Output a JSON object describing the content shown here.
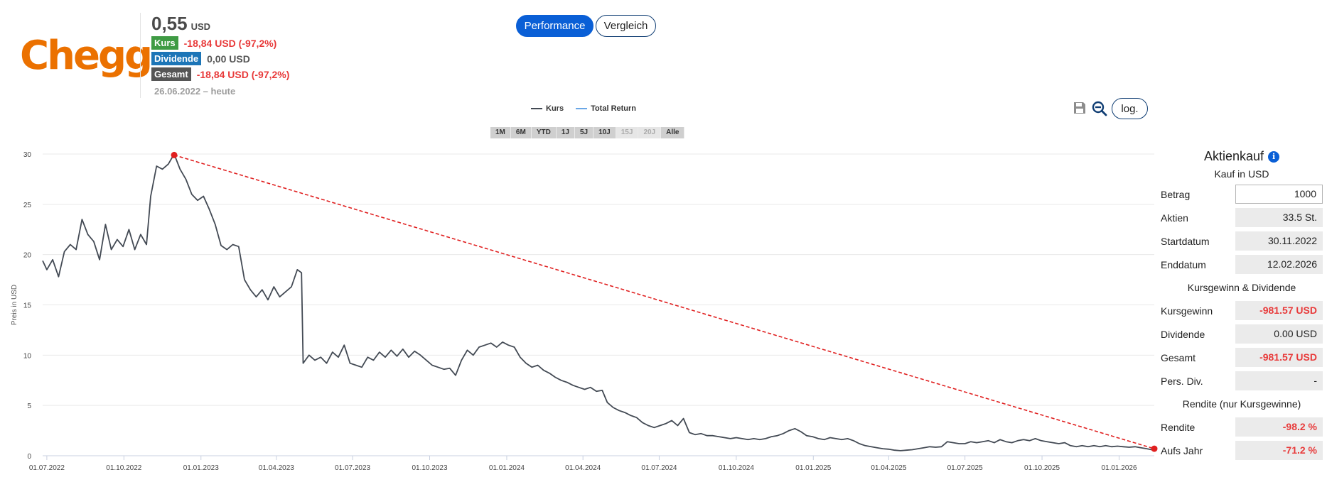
{
  "header": {
    "logo": "Chegg",
    "price": "0,55",
    "price_currency": "USD",
    "kurs_tag": "Kurs",
    "kurs_value": "-18,84 USD (-97,2%)",
    "dividende_tag": "Dividende",
    "dividende_value": "0,00 USD",
    "gesamt_tag": "Gesamt",
    "gesamt_value": "-18,84 USD (-97,2%)",
    "period": "26.06.2022 – heute"
  },
  "tabs": {
    "performance": "Performance",
    "vergleich": "Vergleich"
  },
  "tools": {
    "log": "log.",
    "save_icon": "save-icon",
    "zoom_out_icon": "zoom-out-icon"
  },
  "ranges": [
    {
      "label": "1M",
      "enabled": true
    },
    {
      "label": "6M",
      "enabled": true
    },
    {
      "label": "YTD",
      "enabled": true
    },
    {
      "label": "1J",
      "enabled": true
    },
    {
      "label": "5J",
      "enabled": true
    },
    {
      "label": "10J",
      "enabled": true
    },
    {
      "label": "15J",
      "enabled": false
    },
    {
      "label": "20J",
      "enabled": false
    },
    {
      "label": "Alle",
      "enabled": true
    }
  ],
  "chart_data": {
    "type": "line",
    "ylabel": "Preis in USD",
    "ylim": [
      0,
      30
    ],
    "yticks": [
      0,
      5,
      10,
      15,
      20,
      25,
      30
    ],
    "xlim": [
      "2022-06-26",
      "2026-02-12"
    ],
    "xticks": [
      {
        "date": "2022-07-01",
        "label": "01.07.2022"
      },
      {
        "date": "2022-10-01",
        "label": "01.10.2022"
      },
      {
        "date": "2023-01-01",
        "label": "01.01.2023"
      },
      {
        "date": "2023-04-01",
        "label": "01.04.2023"
      },
      {
        "date": "2023-07-01",
        "label": "01.07.2023"
      },
      {
        "date": "2023-10-01",
        "label": "01.10.2023"
      },
      {
        "date": "2024-01-01",
        "label": "01.01.2024"
      },
      {
        "date": "2024-04-01",
        "label": "01.04.2024"
      },
      {
        "date": "2024-07-01",
        "label": "01.07.2024"
      },
      {
        "date": "2024-10-01",
        "label": "01.10.2024"
      },
      {
        "date": "2025-01-01",
        "label": "01.01.2025"
      },
      {
        "date": "2025-04-01",
        "label": "01.04.2025"
      },
      {
        "date": "2025-07-01",
        "label": "01.07.2025"
      },
      {
        "date": "2025-10-01",
        "label": "01.10.2025"
      },
      {
        "date": "2026-01-01",
        "label": "01.01.2026"
      }
    ],
    "legend": {
      "placement": "top-center"
    },
    "grid": true,
    "series": [
      {
        "name": "Kurs",
        "color": "#434a54",
        "points": [
          [
            "2022-06-26",
            19.4
          ],
          [
            "2022-07-01",
            18.5
          ],
          [
            "2022-07-08",
            19.5
          ],
          [
            "2022-07-15",
            17.8
          ],
          [
            "2022-07-22",
            20.3
          ],
          [
            "2022-07-29",
            21.0
          ],
          [
            "2022-08-05",
            20.5
          ],
          [
            "2022-08-12",
            23.5
          ],
          [
            "2022-08-19",
            22.0
          ],
          [
            "2022-08-26",
            21.3
          ],
          [
            "2022-09-02",
            19.5
          ],
          [
            "2022-09-09",
            23.0
          ],
          [
            "2022-09-16",
            20.5
          ],
          [
            "2022-09-23",
            21.5
          ],
          [
            "2022-09-30",
            20.8
          ],
          [
            "2022-10-07",
            22.5
          ],
          [
            "2022-10-14",
            20.5
          ],
          [
            "2022-10-21",
            22.0
          ],
          [
            "2022-10-28",
            21.0
          ],
          [
            "2022-11-02",
            25.8
          ],
          [
            "2022-11-09",
            28.8
          ],
          [
            "2022-11-16",
            28.5
          ],
          [
            "2022-11-23",
            29.0
          ],
          [
            "2022-11-30",
            30.0
          ],
          [
            "2022-12-07",
            28.5
          ],
          [
            "2022-12-14",
            27.5
          ],
          [
            "2022-12-21",
            26.0
          ],
          [
            "2022-12-28",
            25.4
          ],
          [
            "2023-01-04",
            25.8
          ],
          [
            "2023-01-11",
            24.5
          ],
          [
            "2023-01-18",
            23.0
          ],
          [
            "2023-01-25",
            20.9
          ],
          [
            "2023-02-01",
            20.5
          ],
          [
            "2023-02-08",
            21.0
          ],
          [
            "2023-02-15",
            20.8
          ],
          [
            "2023-02-22",
            17.5
          ],
          [
            "2023-03-01",
            16.5
          ],
          [
            "2023-03-08",
            15.8
          ],
          [
            "2023-03-15",
            16.5
          ],
          [
            "2023-03-22",
            15.5
          ],
          [
            "2023-03-29",
            16.8
          ],
          [
            "2023-04-05",
            15.8
          ],
          [
            "2023-04-12",
            16.3
          ],
          [
            "2023-04-19",
            16.8
          ],
          [
            "2023-04-26",
            18.5
          ],
          [
            "2023-05-01",
            18.2
          ],
          [
            "2023-05-03",
            9.2
          ],
          [
            "2023-05-10",
            10.0
          ],
          [
            "2023-05-17",
            9.5
          ],
          [
            "2023-05-24",
            9.8
          ],
          [
            "2023-05-31",
            9.2
          ],
          [
            "2023-06-07",
            10.3
          ],
          [
            "2023-06-14",
            9.8
          ],
          [
            "2023-06-21",
            11.0
          ],
          [
            "2023-06-28",
            9.2
          ],
          [
            "2023-07-05",
            9.0
          ],
          [
            "2023-07-12",
            8.8
          ],
          [
            "2023-07-19",
            9.8
          ],
          [
            "2023-07-26",
            9.5
          ],
          [
            "2023-08-02",
            10.3
          ],
          [
            "2023-08-09",
            9.8
          ],
          [
            "2023-08-16",
            10.5
          ],
          [
            "2023-08-23",
            9.9
          ],
          [
            "2023-08-30",
            10.6
          ],
          [
            "2023-09-06",
            9.8
          ],
          [
            "2023-09-13",
            10.4
          ],
          [
            "2023-09-20",
            10.0
          ],
          [
            "2023-09-27",
            9.5
          ],
          [
            "2023-10-04",
            9.0
          ],
          [
            "2023-10-11",
            8.8
          ],
          [
            "2023-10-18",
            8.6
          ],
          [
            "2023-10-25",
            8.7
          ],
          [
            "2023-11-01",
            8.0
          ],
          [
            "2023-11-08",
            9.5
          ],
          [
            "2023-11-15",
            10.5
          ],
          [
            "2023-11-22",
            10.0
          ],
          [
            "2023-11-29",
            10.8
          ],
          [
            "2023-12-06",
            11.0
          ],
          [
            "2023-12-13",
            11.2
          ],
          [
            "2023-12-20",
            10.8
          ],
          [
            "2023-12-27",
            11.3
          ],
          [
            "2024-01-03",
            11.0
          ],
          [
            "2024-01-10",
            10.8
          ],
          [
            "2024-01-17",
            9.8
          ],
          [
            "2024-01-24",
            9.2
          ],
          [
            "2024-01-31",
            8.8
          ],
          [
            "2024-02-07",
            9.0
          ],
          [
            "2024-02-14",
            8.5
          ],
          [
            "2024-02-21",
            8.2
          ],
          [
            "2024-02-28",
            7.8
          ],
          [
            "2024-03-06",
            7.5
          ],
          [
            "2024-03-13",
            7.3
          ],
          [
            "2024-03-20",
            7.0
          ],
          [
            "2024-03-27",
            6.8
          ],
          [
            "2024-04-03",
            6.6
          ],
          [
            "2024-04-10",
            6.8
          ],
          [
            "2024-04-17",
            6.4
          ],
          [
            "2024-04-24",
            6.5
          ],
          [
            "2024-04-30",
            5.3
          ],
          [
            "2024-05-07",
            4.8
          ],
          [
            "2024-05-14",
            4.5
          ],
          [
            "2024-05-21",
            4.3
          ],
          [
            "2024-05-28",
            4.0
          ],
          [
            "2024-06-04",
            3.8
          ],
          [
            "2024-06-11",
            3.3
          ],
          [
            "2024-06-18",
            3.0
          ],
          [
            "2024-06-25",
            2.8
          ],
          [
            "2024-07-02",
            3.0
          ],
          [
            "2024-07-09",
            3.2
          ],
          [
            "2024-07-16",
            3.5
          ],
          [
            "2024-07-23",
            3.0
          ],
          [
            "2024-07-30",
            3.7
          ],
          [
            "2024-08-06",
            2.3
          ],
          [
            "2024-08-13",
            2.1
          ],
          [
            "2024-08-20",
            2.2
          ],
          [
            "2024-08-27",
            2.0
          ],
          [
            "2024-09-03",
            2.0
          ],
          [
            "2024-09-10",
            1.9
          ],
          [
            "2024-09-17",
            1.8
          ],
          [
            "2024-09-24",
            1.7
          ],
          [
            "2024-10-01",
            1.8
          ],
          [
            "2024-10-08",
            1.7
          ],
          [
            "2024-10-15",
            1.6
          ],
          [
            "2024-10-22",
            1.7
          ],
          [
            "2024-10-29",
            1.6
          ],
          [
            "2024-11-05",
            1.7
          ],
          [
            "2024-11-12",
            1.9
          ],
          [
            "2024-11-19",
            2.0
          ],
          [
            "2024-11-26",
            2.2
          ],
          [
            "2024-12-03",
            2.5
          ],
          [
            "2024-12-10",
            2.7
          ],
          [
            "2024-12-17",
            2.4
          ],
          [
            "2024-12-24",
            2.0
          ],
          [
            "2024-12-31",
            1.9
          ],
          [
            "2025-01-07",
            1.7
          ],
          [
            "2025-01-14",
            1.6
          ],
          [
            "2025-01-21",
            1.8
          ],
          [
            "2025-01-28",
            1.7
          ],
          [
            "2025-02-04",
            1.6
          ],
          [
            "2025-02-11",
            1.7
          ],
          [
            "2025-02-18",
            1.5
          ],
          [
            "2025-02-25",
            1.2
          ],
          [
            "2025-03-04",
            1.0
          ],
          [
            "2025-03-11",
            0.9
          ],
          [
            "2025-03-18",
            0.8
          ],
          [
            "2025-03-25",
            0.7
          ],
          [
            "2025-04-01",
            0.65
          ],
          [
            "2025-04-08",
            0.55
          ],
          [
            "2025-04-15",
            0.5
          ],
          [
            "2025-04-22",
            0.55
          ],
          [
            "2025-04-29",
            0.6
          ],
          [
            "2025-05-06",
            0.7
          ],
          [
            "2025-05-13",
            0.8
          ],
          [
            "2025-05-20",
            0.9
          ],
          [
            "2025-05-27",
            0.85
          ],
          [
            "2025-06-03",
            0.9
          ],
          [
            "2025-06-10",
            1.4
          ],
          [
            "2025-06-17",
            1.3
          ],
          [
            "2025-06-24",
            1.2
          ],
          [
            "2025-07-01",
            1.2
          ],
          [
            "2025-07-08",
            1.4
          ],
          [
            "2025-07-15",
            1.3
          ],
          [
            "2025-07-22",
            1.4
          ],
          [
            "2025-07-29",
            1.5
          ],
          [
            "2025-08-05",
            1.3
          ],
          [
            "2025-08-12",
            1.6
          ],
          [
            "2025-08-19",
            1.4
          ],
          [
            "2025-08-26",
            1.3
          ],
          [
            "2025-09-02",
            1.5
          ],
          [
            "2025-09-09",
            1.6
          ],
          [
            "2025-09-16",
            1.5
          ],
          [
            "2025-09-23",
            1.7
          ],
          [
            "2025-09-30",
            1.5
          ],
          [
            "2025-10-07",
            1.4
          ],
          [
            "2025-10-14",
            1.3
          ],
          [
            "2025-10-21",
            1.2
          ],
          [
            "2025-10-28",
            1.3
          ],
          [
            "2025-11-04",
            1.0
          ],
          [
            "2025-11-11",
            0.9
          ],
          [
            "2025-11-18",
            1.0
          ],
          [
            "2025-11-25",
            0.9
          ],
          [
            "2025-12-02",
            1.0
          ],
          [
            "2025-12-09",
            0.9
          ],
          [
            "2025-12-16",
            1.0
          ],
          [
            "2025-12-23",
            0.9
          ],
          [
            "2025-12-30",
            0.95
          ],
          [
            "2026-01-06",
            0.9
          ],
          [
            "2026-01-13",
            0.85
          ],
          [
            "2026-01-20",
            0.9
          ],
          [
            "2026-01-27",
            0.8
          ],
          [
            "2026-02-03",
            0.7
          ],
          [
            "2026-02-12",
            0.55
          ]
        ]
      },
      {
        "name": "Total Return",
        "color": "#6aa7e6",
        "points": []
      }
    ],
    "trendline": {
      "color": "#e02020",
      "start": {
        "date": "2022-11-30",
        "value": 29.9
      },
      "end": {
        "date": "2026-02-12",
        "value": 0.7
      }
    }
  },
  "panel": {
    "title": "Aktienkauf",
    "info_icon": "info-icon",
    "subtitle": "Kauf in USD",
    "rows1": [
      {
        "key": "betrag",
        "label": "Betrag",
        "value": "1000",
        "input": true
      },
      {
        "key": "aktien",
        "label": "Aktien",
        "value": "33.5 St."
      },
      {
        "key": "startdatum",
        "label": "Startdatum",
        "value": "30.11.2022"
      },
      {
        "key": "enddatum",
        "label": "Enddatum",
        "value": "12.02.2026"
      }
    ],
    "section2": "Kursgewinn & Dividende",
    "rows2": [
      {
        "key": "kursgewinn",
        "label": "Kursgewinn",
        "value": "-981.57 USD",
        "red": true
      },
      {
        "key": "dividende",
        "label": "Dividende",
        "value": "0.00 USD"
      },
      {
        "key": "gesamt",
        "label": "Gesamt",
        "value": "-981.57 USD",
        "red": true
      },
      {
        "key": "pers-div",
        "label": "Pers. Div.",
        "value": "-"
      }
    ],
    "section3": "Rendite (nur Kursgewinne)",
    "rows3": [
      {
        "key": "rendite",
        "label": "Rendite",
        "value": "-98.2 %",
        "red": true
      },
      {
        "key": "aufs-jahr",
        "label": "Aufs Jahr",
        "value": "-71.2 %",
        "red": true
      }
    ]
  }
}
